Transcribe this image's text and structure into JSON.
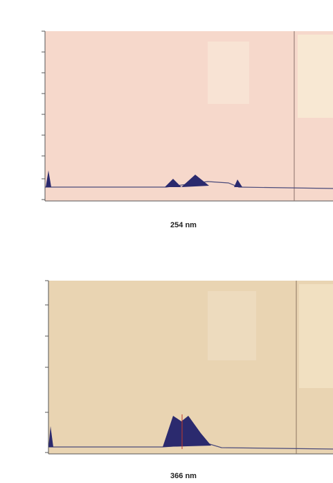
{
  "panels": [
    {
      "caption": "254 nm"
    },
    {
      "caption": "366 nm"
    }
  ]
}
